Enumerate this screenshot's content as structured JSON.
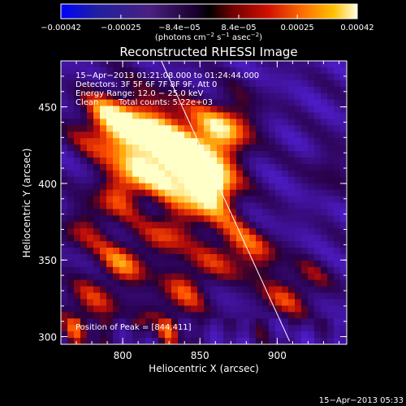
{
  "colorbar": {
    "tick_labels": [
      "−0.00042",
      "−0.00025",
      "−8.4e−05",
      "8.4e−05",
      "0.00025",
      "0.00042"
    ],
    "tick_values": [
      -0.00042,
      -0.00025,
      -8.4e-05,
      8.4e-05,
      0.00025,
      0.00042
    ],
    "range": [
      -0.00042,
      0.00042
    ],
    "units_main": "(photons cm",
    "units_exp1": "−2",
    "units_mid": " s",
    "units_exp2": "−1",
    "units_mid2": " asec",
    "units_exp3": "−2",
    "units_end": ")"
  },
  "image": {
    "title": "Reconstructed RHESSI Image",
    "time_range": "15−Apr−2013 01:21:08.000 to 01:24:44.000",
    "detectors": "Detectors: 3F 5F 6F 7F 8F 9F, Att 0",
    "energy_range": "Energy Range: 12.0 − 25.0 keV",
    "clean_label": "Clean",
    "total_counts": "Total counts: 5.22e+03",
    "peak_position": "Position of Peak = [844,411]",
    "xlabel": "Heliocentric X (arcsec)",
    "ylabel": "Heliocentric Y (arcsec)",
    "xlim": [
      760,
      945
    ],
    "ylim": [
      295,
      480
    ],
    "x_ticks": [
      {
        "value": 800,
        "label": "800"
      },
      {
        "value": 850,
        "label": "850"
      },
      {
        "value": 900,
        "label": "900"
      }
    ],
    "y_ticks": [
      {
        "value": 300,
        "label": "300"
      },
      {
        "value": 350,
        "label": "350"
      },
      {
        "value": 400,
        "label": "400"
      },
      {
        "value": 450,
        "label": "450"
      }
    ],
    "limb_line": [
      [
        825,
        480
      ],
      [
        908,
        297
      ]
    ],
    "colors": {
      "low": "#0000ff",
      "mid": "#2a0060",
      "high": "#ffff80"
    }
  },
  "footer": {
    "timestamp": "15−Apr−2013 05:33"
  }
}
